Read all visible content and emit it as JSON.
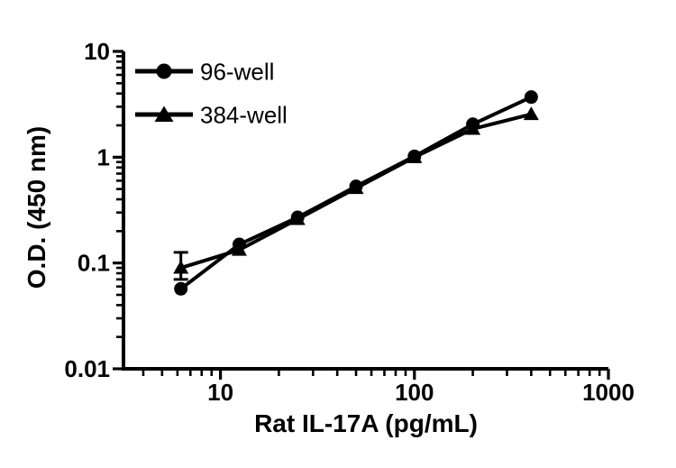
{
  "figure": {
    "background_color": "#ffffff",
    "ink_color": "#000000"
  },
  "chart_data": {
    "type": "line",
    "title": "",
    "xlabel": "Rat IL-17A (pg/mL)",
    "ylabel": "O.D. (450 nm)",
    "x_scale": "log",
    "y_scale": "log",
    "xlim": [
      3.162,
      1000
    ],
    "ylim": [
      0.01,
      10
    ],
    "x_major_ticks": [
      10,
      100,
      1000
    ],
    "x_tick_labels": [
      "10",
      "100",
      "1000"
    ],
    "y_major_ticks": [
      0.01,
      0.1,
      1,
      10
    ],
    "y_tick_labels": [
      "0.01",
      "0.1",
      "1",
      "10"
    ],
    "grid": false,
    "legend_position": "upper-left-inside",
    "x": [
      6.25,
      12.5,
      25,
      50,
      100,
      200,
      400
    ],
    "series": [
      {
        "name": "96-well",
        "marker": "circle",
        "color": "#000000",
        "values": [
          0.057,
          0.15,
          0.27,
          0.53,
          1.02,
          2.05,
          3.7
        ]
      },
      {
        "name": "384-well",
        "marker": "triangle",
        "color": "#000000",
        "values": [
          0.09,
          0.133,
          0.26,
          0.51,
          1.0,
          1.85,
          2.55
        ],
        "error_bars": [
          {
            "x": 6.25,
            "low": 0.07,
            "high": 0.126
          }
        ]
      }
    ]
  }
}
